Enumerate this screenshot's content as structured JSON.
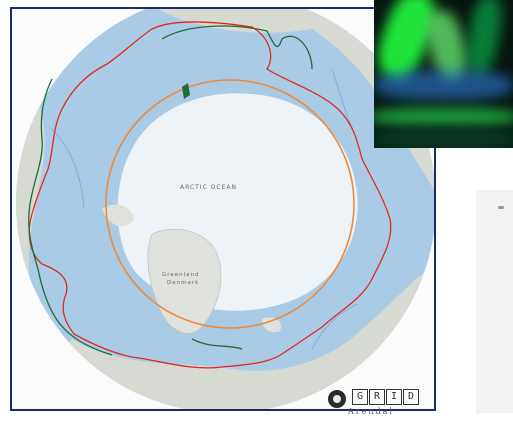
{
  "map": {
    "center_label": "ARCTIC OCEAN",
    "greenland_label": "Greenland",
    "greenland_sub": "Denmark",
    "colors": {
      "land": "#d7d9d3",
      "ocean": "#a9cbe6",
      "ice": "#eef3f7",
      "arctic_circle": "#f08a3a",
      "boundary_red": "#e02a1e",
      "boundary_green": "#1f6b3a",
      "frame": "#1c2a6b"
    }
  },
  "logo": {
    "letters": [
      "G",
      "R",
      "I",
      "D"
    ],
    "sub": "Arendal"
  },
  "aurora": {
    "icon": "aurora-photo",
    "colors": [
      "#1fe33a",
      "#0aa84a",
      "#2d7bd8",
      "#63e06a"
    ]
  }
}
